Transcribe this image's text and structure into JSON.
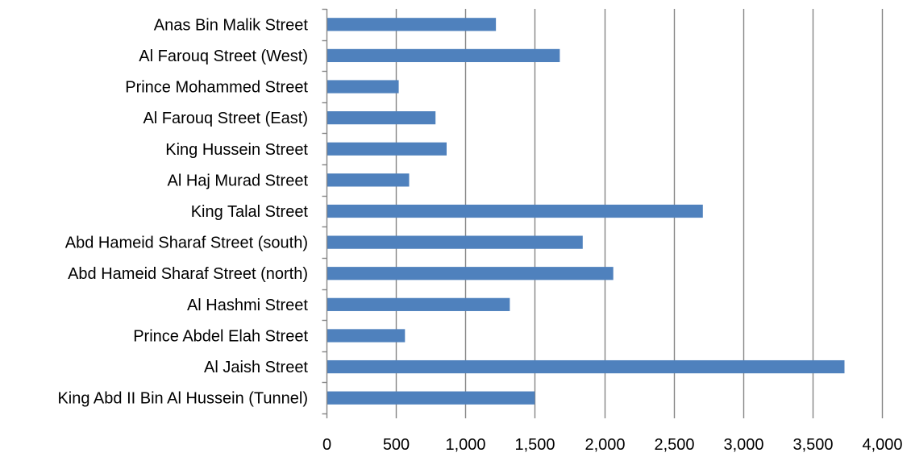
{
  "chart_data": {
    "type": "bar",
    "orientation": "horizontal",
    "categories": [
      "Anas Bin Malik Street",
      "Al Farouq Street (West)",
      "Prince Mohammed Street",
      "Al Farouq Street (East)",
      "King Hussein Street",
      "Al Haj Murad Street",
      "King Talal Street",
      "Abd Hameid Sharaf Street (south)",
      "Abd Hameid Sharaf Street (north)",
      "Al Hashmi Street",
      "Prince Abdel Elah Street",
      "Al Jaish Street",
      "King Abd II Bin Al Hussein (Tunnel)"
    ],
    "values": [
      1220,
      1680,
      520,
      785,
      865,
      595,
      2710,
      1845,
      2065,
      1320,
      565,
      3730,
      1500
    ],
    "xlim": [
      0,
      4000
    ],
    "xticks": [
      0,
      500,
      1000,
      1500,
      2000,
      2500,
      3000,
      3500,
      4000
    ],
    "xtick_labels": [
      "0",
      "500",
      "1,000",
      "1,500",
      "2,000",
      "2,500",
      "3,000",
      "3,500",
      "4,000"
    ],
    "bar_color": "#4f81bd",
    "gridline_color": "#868686",
    "axis_color": "#868686",
    "grid": true,
    "legend": false
  }
}
